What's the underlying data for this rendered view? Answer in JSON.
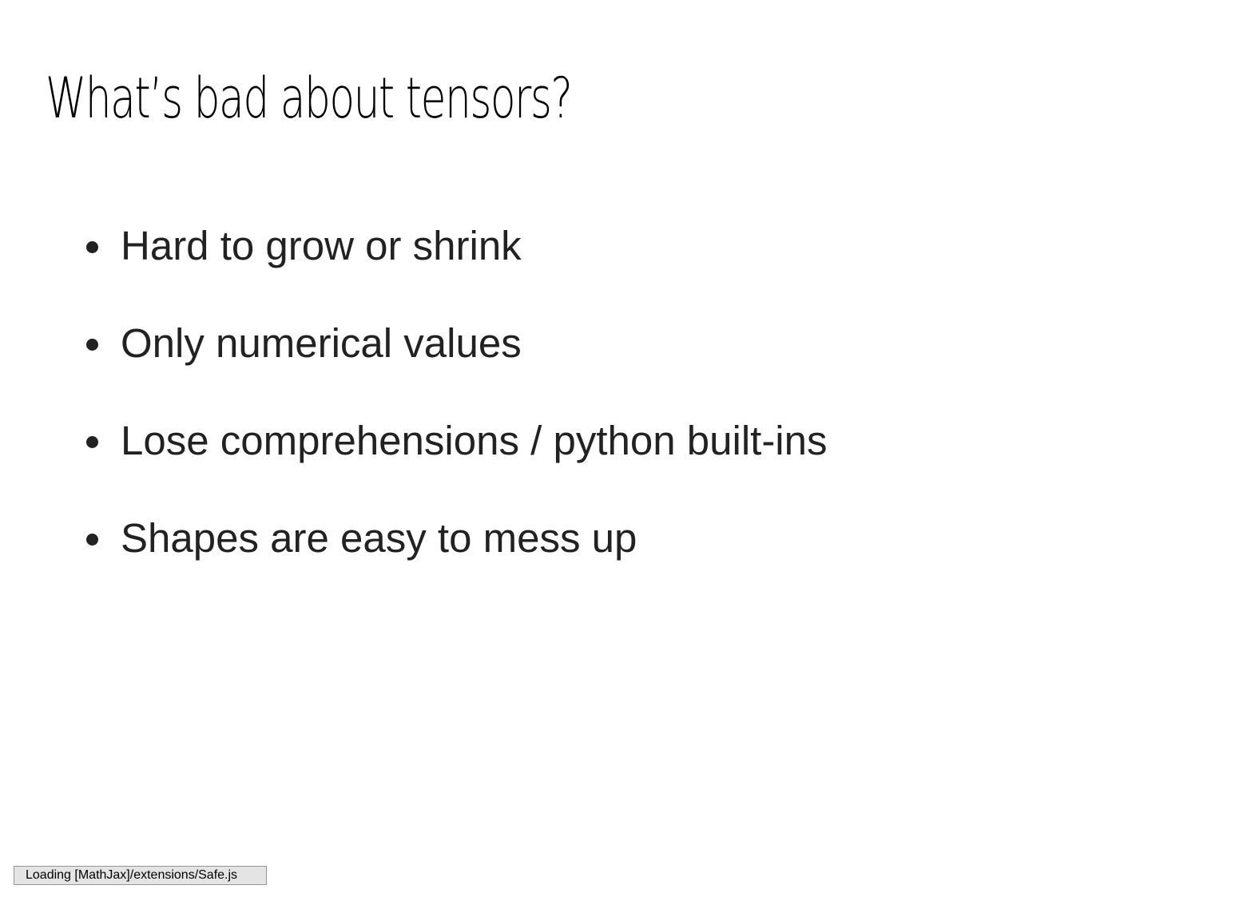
{
  "slide": {
    "title": "What’s bad about tensors?",
    "bullets": [
      "Hard to grow or shrink",
      "Only numerical values",
      "Lose comprehensions / python built-ins",
      "Shapes are easy to mess up"
    ]
  },
  "status": {
    "message": "Loading [MathJax]/extensions/Safe.js"
  },
  "colors": {
    "background": "#ffffff",
    "title": "#000000",
    "bullet_text": "#222222",
    "status_bg": "#e4e4e4",
    "status_border": "#959595"
  }
}
